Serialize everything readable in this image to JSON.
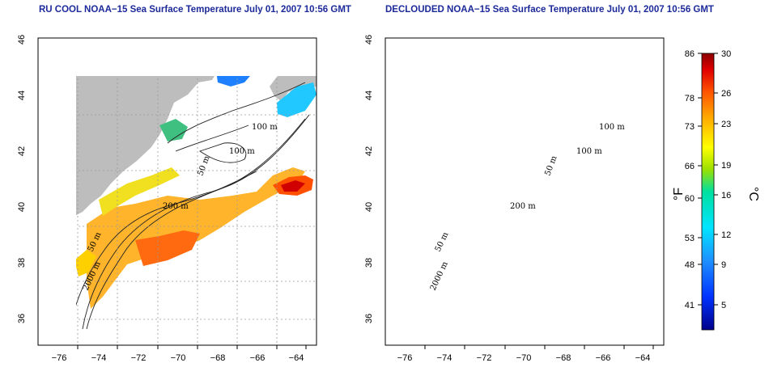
{
  "panels": [
    {
      "title": "RU COOL NOAA−15 Sea Surface Temperature July 01, 2007 10:56 GMT",
      "clouded": true
    },
    {
      "title": "DECLOUDED NOAA−15 Sea Surface Temperature July 01, 2007 10:56 GMT",
      "clouded": false
    }
  ],
  "axes": {
    "lon_ticks": [
      "−76",
      "−74",
      "−72",
      "−70",
      "−68",
      "−66",
      "−64"
    ],
    "lat_ticks": [
      "36",
      "38",
      "40",
      "42",
      "44",
      "46"
    ],
    "lon_range": [
      -77.2,
      -63.0
    ],
    "lat_range": [
      35.0,
      46.0
    ],
    "grid": "dotted"
  },
  "contour_labels": {
    "left": [
      "100 m",
      "100 m",
      "50 m",
      "200 m",
      "50 m",
      "2000 m"
    ],
    "right": [
      "100 m",
      "100 m",
      "50 m",
      "200 m",
      "50 m",
      "2000 m"
    ]
  },
  "colorbar": {
    "fahrenheit_ticks": [
      "86",
      "78",
      "73",
      "66",
      "60",
      "53",
      "48",
      "41"
    ],
    "celsius_ticks": [
      "30",
      "26",
      "23",
      "19",
      "16",
      "12",
      "9",
      "5"
    ],
    "fahrenheit_unit": "°F",
    "celsius_unit": "°C",
    "range_c": [
      2,
      30
    ]
  },
  "colors": {
    "land": "#bdbdbd",
    "sea_cloud": "#ffffff",
    "title": "#1c2a9a"
  }
}
